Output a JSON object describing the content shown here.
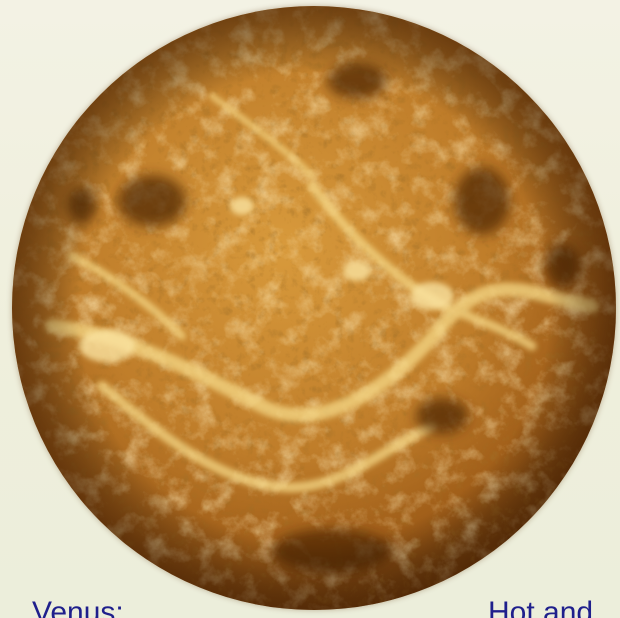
{
  "image": {
    "subject": "planet-venus-radar-map",
    "colors": {
      "background": "#f0f0df",
      "surface_light": "#f7d77e",
      "surface_mid": "#c98a2f",
      "surface_dark": "#5a2a05",
      "caption_text": "#1f1f8c"
    }
  },
  "caption": {
    "left": "Venus:",
    "right": "Hot and"
  }
}
